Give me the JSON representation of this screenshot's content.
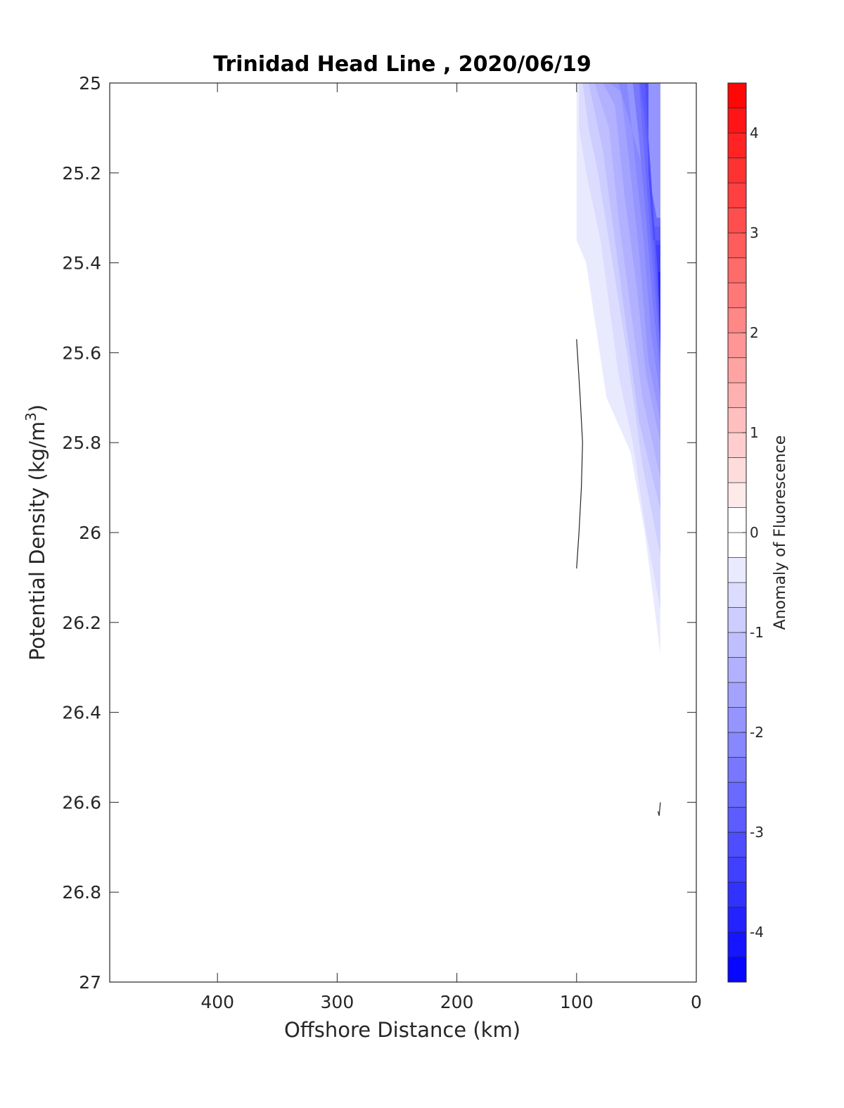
{
  "chart_data": {
    "type": "contour",
    "title": "Trinidad Head Line , 2020/06/19",
    "xlabel": "Offshore Distance (km)",
    "ylabel_prefix": "Potential Density (kg/m",
    "ylabel_sup": "3",
    "ylabel_suffix": ")",
    "xlim": [
      490,
      0
    ],
    "ylim": [
      27,
      25
    ],
    "x_reversed": true,
    "y_reversed": true,
    "x_ticks": [
      400,
      300,
      200,
      100,
      0
    ],
    "x_tick_labels": [
      "400",
      "300",
      "200",
      "100",
      "0"
    ],
    "y_ticks": [
      25,
      25.2,
      25.4,
      25.6,
      25.8,
      26,
      26.2,
      26.4,
      26.6,
      26.8,
      27
    ],
    "y_tick_labels": [
      "25",
      "25.2",
      "25.4",
      "25.6",
      "25.8",
      "26",
      "26.2",
      "26.4",
      "26.6",
      "26.8",
      "27"
    ],
    "colorbar": {
      "label": "Anomaly of Fluorescence",
      "range": [
        -4.5,
        4.5
      ],
      "level_step": 0.25,
      "ticks": [
        -4,
        -3,
        -2,
        -1,
        0,
        1,
        2,
        3,
        4
      ],
      "tick_labels": [
        "-4",
        "-3",
        "-2",
        "-1",
        "0",
        "1",
        "2",
        "3",
        "4"
      ],
      "colormap": "blue-white-red",
      "low_color": "#0000ff",
      "mid_color": "#ffffff",
      "high_color": "#ff0000"
    },
    "filled_regions": [
      {
        "value": -0.375,
        "polygon": [
          [
            100,
            25
          ],
          [
            30,
            25
          ],
          [
            30,
            26.27
          ],
          [
            43,
            26
          ],
          [
            55,
            25.82
          ],
          [
            75,
            25.7
          ],
          [
            92,
            25.4
          ],
          [
            100,
            25.35
          ]
        ]
      },
      {
        "value": -0.625,
        "polygon": [
          [
            98,
            25
          ],
          [
            30,
            25
          ],
          [
            30,
            26.17
          ],
          [
            42,
            26
          ],
          [
            53,
            25.8
          ],
          [
            65,
            25.65
          ],
          [
            80,
            25.35
          ],
          [
            92,
            25.2
          ],
          [
            98,
            25.1
          ]
        ]
      },
      {
        "value": -0.875,
        "polygon": [
          [
            95,
            25
          ],
          [
            30,
            25
          ],
          [
            30,
            26.05
          ],
          [
            45,
            25.85
          ],
          [
            58,
            25.6
          ],
          [
            70,
            25.4
          ],
          [
            82,
            25.2
          ],
          [
            90,
            25.1
          ]
        ]
      },
      {
        "value": -1.125,
        "polygon": [
          [
            90,
            25
          ],
          [
            30,
            25
          ],
          [
            30,
            25.95
          ],
          [
            48,
            25.75
          ],
          [
            58,
            25.55
          ],
          [
            68,
            25.35
          ],
          [
            78,
            25.15
          ]
        ]
      },
      {
        "value": -1.375,
        "polygon": [
          [
            85,
            25
          ],
          [
            30,
            25
          ],
          [
            30,
            25.88
          ],
          [
            45,
            25.7
          ],
          [
            55,
            25.5
          ],
          [
            65,
            25.3
          ],
          [
            73,
            25.1
          ]
        ]
      },
      {
        "value": -1.625,
        "polygon": [
          [
            78,
            25
          ],
          [
            30,
            25
          ],
          [
            30,
            25.8
          ],
          [
            42,
            25.65
          ],
          [
            50,
            25.45
          ],
          [
            60,
            25.25
          ],
          [
            68,
            25.05
          ]
        ]
      },
      {
        "value": -1.875,
        "polygon": [
          [
            72,
            25
          ],
          [
            30,
            25
          ],
          [
            30,
            25.75
          ],
          [
            40,
            25.62
          ],
          [
            47,
            25.4
          ],
          [
            55,
            25.2
          ],
          [
            63,
            25.02
          ]
        ]
      },
      {
        "value": -2.125,
        "polygon": [
          [
            65,
            25
          ],
          [
            33,
            25.3
          ],
          [
            30,
            25.3
          ],
          [
            30,
            25.7
          ],
          [
            38,
            25.55
          ],
          [
            44,
            25.35
          ],
          [
            52,
            25.15
          ],
          [
            58,
            25
          ]
        ]
      },
      {
        "value": -2.375,
        "polygon": [
          [
            58,
            25
          ],
          [
            40,
            25
          ],
          [
            40,
            25.2
          ],
          [
            36,
            25.3
          ],
          [
            30,
            25.3
          ],
          [
            30,
            25.65
          ],
          [
            36,
            25.5
          ],
          [
            42,
            25.3
          ],
          [
            48,
            25.12
          ],
          [
            53,
            25
          ]
        ]
      },
      {
        "value": -2.625,
        "polygon": [
          [
            52,
            25
          ],
          [
            40,
            25
          ],
          [
            40,
            25.2
          ],
          [
            33,
            25.3
          ],
          [
            30,
            25.3
          ],
          [
            30,
            25.6
          ],
          [
            35,
            25.45
          ],
          [
            40,
            25.28
          ],
          [
            45,
            25.1
          ],
          [
            48,
            25
          ]
        ]
      },
      {
        "value": -2.875,
        "polygon": [
          [
            47,
            25
          ],
          [
            40,
            25
          ],
          [
            40,
            25.2
          ],
          [
            35,
            25.32
          ],
          [
            30,
            25.32
          ],
          [
            30,
            25.58
          ],
          [
            34,
            25.42
          ],
          [
            38,
            25.25
          ],
          [
            43,
            25.08
          ]
        ]
      },
      {
        "value": -3.125,
        "polygon": [
          [
            43,
            25
          ],
          [
            40,
            25
          ],
          [
            40,
            25.2
          ],
          [
            36,
            25.35
          ],
          [
            30,
            25.35
          ],
          [
            30,
            25.55
          ],
          [
            33,
            25.4
          ],
          [
            36,
            25.28
          ]
        ]
      },
      {
        "value": -3.375,
        "polygon": [
          [
            34,
            25.36
          ],
          [
            30,
            25.36
          ],
          [
            30,
            25.52
          ],
          [
            32,
            25.42
          ]
        ]
      },
      {
        "value": -3.75,
        "polygon": [
          [
            32,
            25.42
          ],
          [
            30,
            25.42
          ],
          [
            30,
            25.62
          ],
          [
            31,
            25.5
          ]
        ]
      }
    ],
    "zero_contours": [
      {
        "points": [
          [
            100,
            25.57
          ],
          [
            97,
            25.7
          ],
          [
            95,
            25.8
          ],
          [
            96,
            25.9
          ],
          [
            98,
            26
          ],
          [
            100,
            26.08
          ]
        ]
      },
      {
        "points": [
          [
            30,
            26.6
          ],
          [
            31,
            26.63
          ],
          [
            32,
            26.62
          ]
        ]
      }
    ]
  }
}
